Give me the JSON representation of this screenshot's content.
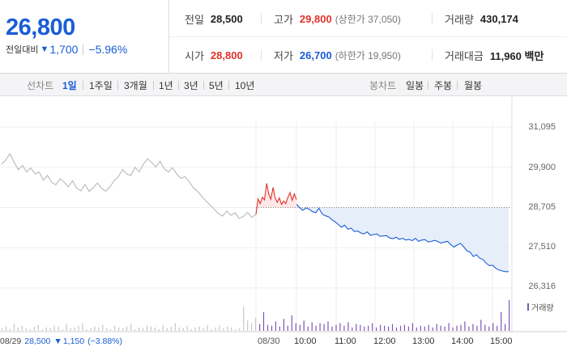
{
  "quote": {
    "price": "26,800",
    "change_label": "전일대비",
    "change_arrow": "▼",
    "change_value": "1,700",
    "change_pct": "−5.96%"
  },
  "stats": {
    "prev_close_label": "전일",
    "prev_close": "28,500",
    "high_label": "고가",
    "high": "29,800",
    "upper_limit": "(상한가 37,050)",
    "volume_label": "거래량",
    "volume": "430,174",
    "open_label": "시가",
    "open": "28,800",
    "low_label": "저가",
    "low": "26,700",
    "lower_limit": "(하한가 19,950)",
    "amount_label": "거래대금",
    "amount": "11,960 백만"
  },
  "tabs": {
    "line_label": "선차트",
    "line_periods": [
      "1일",
      "1주일",
      "3개월",
      "1년",
      "3년",
      "5년",
      "10년"
    ],
    "selected_period": "1일",
    "candle_label": "봉차트",
    "candle_periods": [
      "일봉",
      "주봉",
      "월봉"
    ]
  },
  "colors": {
    "accent_blue": "#1a5dd6",
    "accent_red": "#e0322a",
    "prev_day_gray": "#b8b8b8",
    "volume_purple": "#7b57b8",
    "fill_blue": "#e6eefa",
    "fill_red": "#fde7e7"
  },
  "chart_data": {
    "type": "line",
    "y_ticks": [
      "31,095",
      "29,900",
      "28,705",
      "27,510",
      "26,316"
    ],
    "y_tick_values": [
      31095,
      29900,
      28705,
      27510,
      26316
    ],
    "ylim": [
      26316,
      31095
    ],
    "reference_price": 28705,
    "x_ticks": [
      "08/30",
      "10:00",
      "11:00",
      "12:00",
      "13:00",
      "14:00",
      "15:00"
    ],
    "prev_day_label": "08/29",
    "prev_day_close": "28,500",
    "prev_day_arrow": "▼",
    "prev_day_change": "1,150",
    "prev_day_pct": "(−3.88%)",
    "volume_legend": "거래량",
    "series": [
      {
        "segment": "prev_day",
        "values": [
          29990,
          30120,
          30300,
          30050,
          29830,
          29950,
          29760,
          29880,
          29700,
          29760,
          29520,
          29660,
          29450,
          29380,
          29560,
          29460,
          29320,
          29500,
          29280,
          29200,
          29390,
          29180,
          29300,
          29430,
          29270,
          29190,
          29320,
          29500,
          29620,
          29830,
          29700,
          29660,
          29900,
          29760,
          29990,
          30150,
          30040,
          29910,
          30080,
          29850,
          29760,
          29890,
          29700,
          29570,
          29620,
          29470,
          29290,
          29180,
          29040,
          28900,
          28780,
          28650,
          28520,
          28450,
          28600,
          28470,
          28550,
          28380,
          28440,
          28560,
          28410,
          28500
        ]
      },
      {
        "segment": "morning_up",
        "values": [
          28500,
          28960,
          28820,
          29010,
          28930,
          29420,
          29100,
          28950,
          29300,
          28990,
          28860,
          28990,
          28800,
          28900,
          28820,
          29010,
          29150,
          28920,
          29110,
          28940
        ]
      },
      {
        "segment": "intraday_down",
        "values": [
          28800,
          28700,
          28620,
          28690,
          28650,
          28580,
          28550,
          28680,
          28510,
          28460,
          28430,
          28340,
          28280,
          28200,
          28120,
          28180,
          28060,
          28090,
          27990,
          28010,
          27950,
          27920,
          27980,
          27880,
          27900,
          27920,
          27850,
          27860,
          27870,
          27800,
          27780,
          27820,
          27760,
          27790,
          27740,
          27760,
          27720,
          27790,
          27700,
          27740,
          27750,
          27680,
          27700,
          27730,
          27690,
          27650,
          27680,
          27700,
          27600,
          27530,
          27590,
          27640,
          27540,
          27420,
          27380,
          27250,
          27300,
          27200,
          27160,
          27050,
          26980,
          26990,
          26900,
          26850,
          26820,
          26800,
          26800
        ]
      }
    ],
    "volume": [
      3,
      5,
      2,
      8,
      4,
      6,
      3,
      2,
      5,
      7,
      2,
      4,
      3,
      6,
      5,
      2,
      8,
      3,
      4,
      6,
      9,
      2,
      3,
      5,
      4,
      7,
      3,
      2,
      6,
      4,
      3,
      5,
      8,
      2,
      4,
      3,
      6,
      5,
      4,
      2,
      7,
      3,
      5,
      9,
      4,
      3,
      6,
      2,
      4,
      5,
      3,
      7,
      2,
      4,
      6,
      3,
      5,
      4,
      2,
      3,
      28,
      12,
      9,
      15,
      8,
      22,
      7,
      6,
      11,
      5,
      14,
      6,
      18,
      9,
      7,
      12,
      5,
      10,
      6,
      9,
      8,
      11,
      5,
      7,
      9,
      6,
      10,
      4,
      8,
      7,
      5,
      6,
      9,
      4,
      7,
      6,
      5,
      8,
      4,
      6,
      7,
      5,
      9,
      4,
      6,
      5,
      7,
      4,
      8,
      6,
      5,
      9,
      4,
      6,
      7,
      11,
      5,
      8,
      6,
      13,
      7,
      5,
      9,
      6,
      22,
      8,
      36
    ]
  }
}
